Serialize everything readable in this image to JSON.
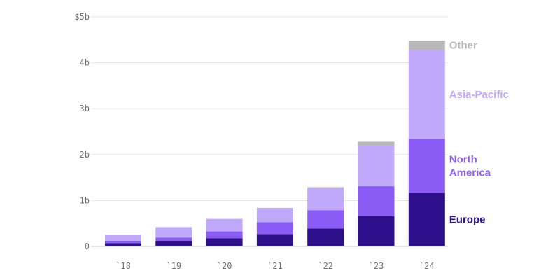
{
  "chart_data": {
    "type": "bar",
    "stacked": true,
    "categories": [
      "`18",
      "`19",
      "`20",
      "`21",
      "`22",
      "`23",
      "`24"
    ],
    "series": [
      {
        "name": "Europe",
        "color": "#2e0f8c",
        "values": [
          0.07,
          0.12,
          0.18,
          0.27,
          0.39,
          0.66,
          1.17
        ]
      },
      {
        "name": "North America",
        "color": "#8a5cf5",
        "values": [
          0.05,
          0.07,
          0.15,
          0.26,
          0.4,
          0.65,
          1.17
        ]
      },
      {
        "name": "Asia-Pacific",
        "color": "#c0a9fa",
        "values": [
          0.13,
          0.23,
          0.27,
          0.31,
          0.48,
          0.9,
          1.94
        ]
      },
      {
        "name": "Other",
        "color": "#b8b8b8",
        "values": [
          0.0,
          0.0,
          0.0,
          0.0,
          0.02,
          0.07,
          0.2
        ]
      }
    ],
    "y_ticks": [
      {
        "value": 0,
        "label": "0"
      },
      {
        "value": 1,
        "label": "1b"
      },
      {
        "value": 2,
        "label": "2b"
      },
      {
        "value": 3,
        "label": "3b"
      },
      {
        "value": 4,
        "label": "4b"
      },
      {
        "value": 5,
        "label": "$5b"
      }
    ],
    "ylim": [
      0,
      5
    ],
    "grid": true,
    "legend_placement": "right (labels beside last bar)",
    "legend": [
      {
        "series": "Other",
        "lines": [
          "Other"
        ]
      },
      {
        "series": "Asia-Pacific",
        "lines": [
          "Asia-Pacific"
        ]
      },
      {
        "series": "North America",
        "lines": [
          "North",
          "America"
        ]
      },
      {
        "series": "Europe",
        "lines": [
          "Europe"
        ]
      }
    ],
    "title": "",
    "xlabel": "",
    "ylabel": ""
  }
}
